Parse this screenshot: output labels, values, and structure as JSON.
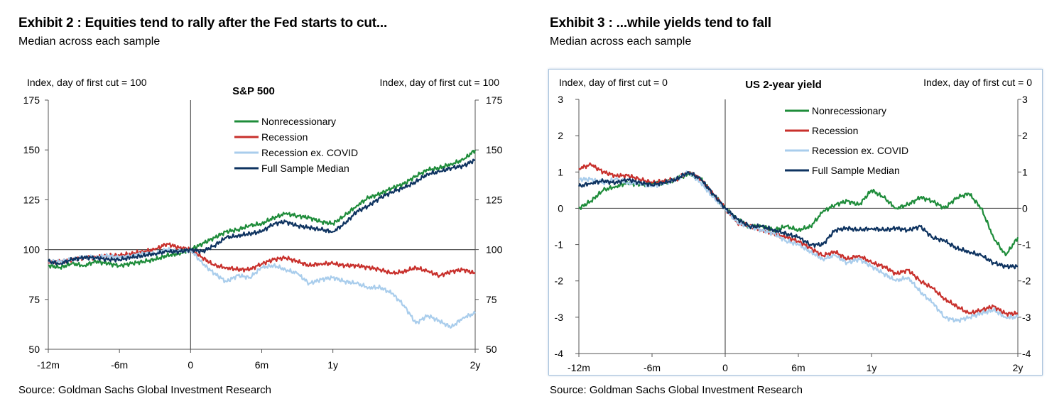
{
  "exhibit2": {
    "title": "Exhibit 2 : Equities tend to rally after the Fed starts to cut...",
    "subtitle": "Median across each sample",
    "source": "Source: Goldman Sachs Global Investment Research"
  },
  "exhibit3": {
    "title": "Exhibit 3 : ...while yields tend to fall",
    "subtitle": "Median across each sample",
    "source": "Source: Goldman Sachs Global Investment Research"
  },
  "colors": {
    "nonrecessionary": "#1e8c3a",
    "recession": "#c8302c",
    "recession_ex_covid": "#a9cdec",
    "full_sample_median": "#0e3360"
  },
  "chart_data": [
    {
      "type": "line",
      "title": "S&P 500",
      "ylabel_left": "Index, day of first cut = 100",
      "ylabel_right": "Index, day of first cut = 100",
      "ylim": [
        50,
        175
      ],
      "yticks": [
        50,
        75,
        100,
        125,
        150,
        175
      ],
      "xlim": [
        -12,
        24
      ],
      "xticks": [
        {
          "value": -12,
          "label": "-12m"
        },
        {
          "value": -6,
          "label": "-6m"
        },
        {
          "value": 0,
          "label": "0"
        },
        {
          "value": 6,
          "label": "6m"
        },
        {
          "value": 12,
          "label": "1y"
        },
        {
          "value": 24,
          "label": "2y"
        }
      ],
      "legend_position": "top-center",
      "reference_lines": {
        "x": 0,
        "y": 100
      },
      "series": [
        {
          "name": "Nonrecessionary",
          "color_key": "nonrecessionary",
          "x": [
            -12,
            -11,
            -10,
            -9,
            -8,
            -7,
            -6,
            -5,
            -4,
            -3,
            -2,
            -1,
            0,
            1,
            2,
            3,
            4,
            5,
            6,
            7,
            8,
            9,
            10,
            11,
            12,
            13,
            14,
            15,
            16,
            17,
            18,
            19,
            20,
            21,
            22,
            23,
            24
          ],
          "y": [
            92,
            91,
            93,
            92,
            94,
            93,
            92,
            93,
            94,
            95,
            97,
            98,
            100,
            103,
            106,
            109,
            110,
            112,
            113,
            116,
            118,
            117,
            116,
            114,
            113,
            117,
            122,
            126,
            128,
            131,
            133,
            137,
            140,
            141,
            143,
            145,
            150
          ]
        },
        {
          "name": "Recession",
          "color_key": "recession",
          "x": [
            -12,
            -11,
            -10,
            -9,
            -8,
            -7,
            -6,
            -5,
            -4,
            -3,
            -2,
            -1,
            0,
            1,
            2,
            3,
            4,
            5,
            6,
            7,
            8,
            9,
            10,
            11,
            12,
            13,
            14,
            15,
            16,
            17,
            18,
            19,
            20,
            21,
            22,
            23,
            24
          ],
          "y": [
            94,
            94,
            95,
            96,
            96,
            97,
            97,
            98,
            99,
            100,
            103,
            101,
            100,
            96,
            92,
            91,
            90,
            90,
            93,
            95,
            96,
            94,
            92,
            93,
            93,
            92,
            92,
            91,
            90,
            88,
            89,
            91,
            89,
            87,
            89,
            90,
            88
          ]
        },
        {
          "name": "Recession ex. COVID",
          "color_key": "recession_ex_covid",
          "x": [
            -12,
            -11,
            -10,
            -9,
            -8,
            -7,
            -6,
            -5,
            -4,
            -3,
            -2,
            -1,
            0,
            1,
            2,
            3,
            4,
            5,
            6,
            7,
            8,
            9,
            10,
            11,
            12,
            13,
            14,
            15,
            16,
            17,
            18,
            19,
            20,
            21,
            22,
            23,
            24
          ],
          "y": [
            94,
            94,
            95,
            96,
            96,
            97,
            96,
            97,
            98,
            98,
            100,
            99,
            100,
            93,
            88,
            84,
            87,
            86,
            91,
            92,
            90,
            88,
            83,
            85,
            86,
            84,
            83,
            81,
            81,
            78,
            72,
            63,
            67,
            64,
            61,
            66,
            68
          ]
        },
        {
          "name": "Full Sample Median",
          "color_key": "full_sample_median",
          "x": [
            -12,
            -11,
            -10,
            -9,
            -8,
            -7,
            -6,
            -5,
            -4,
            -3,
            -2,
            -1,
            0,
            1,
            2,
            3,
            4,
            5,
            6,
            7,
            8,
            9,
            10,
            11,
            12,
            13,
            14,
            15,
            16,
            17,
            18,
            19,
            20,
            21,
            22,
            23,
            24
          ],
          "y": [
            94,
            93,
            95,
            96,
            96,
            95,
            95,
            96,
            97,
            98,
            99,
            99,
            100,
            99,
            102,
            106,
            107,
            108,
            109,
            113,
            114,
            112,
            111,
            110,
            109,
            113,
            119,
            122,
            126,
            129,
            131,
            134,
            138,
            139,
            141,
            142,
            145
          ]
        }
      ]
    },
    {
      "type": "line",
      "title": "US 2-year yield",
      "ylabel_left": "Index, day of first cut = 0",
      "ylabel_right": "Index, day of first cut = 0",
      "ylim": [
        -4,
        3
      ],
      "yticks": [
        -4,
        -3,
        -2,
        -1,
        0,
        1,
        2,
        3
      ],
      "xlim": [
        -12,
        24
      ],
      "xticks": [
        {
          "value": -12,
          "label": "-12m"
        },
        {
          "value": -6,
          "label": "-6m"
        },
        {
          "value": 0,
          "label": "0"
        },
        {
          "value": 6,
          "label": "6m"
        },
        {
          "value": 12,
          "label": "1y"
        },
        {
          "value": 24,
          "label": "2y"
        }
      ],
      "legend_position": "top-right",
      "reference_lines": {
        "x": 0,
        "y": 0
      },
      "series": [
        {
          "name": "Nonrecessionary",
          "color_key": "nonrecessionary",
          "x": [
            -12,
            -11,
            -10,
            -9,
            -8,
            -7,
            -6,
            -5,
            -4,
            -3,
            -2,
            -1,
            0,
            1,
            2,
            3,
            4,
            5,
            6,
            7,
            8,
            9,
            10,
            11,
            12,
            13,
            14,
            15,
            16,
            17,
            18,
            19,
            20,
            21,
            22,
            23,
            24
          ],
          "y": [
            0.0,
            0.2,
            0.5,
            0.6,
            0.7,
            0.65,
            0.7,
            0.7,
            0.8,
            0.95,
            0.8,
            0.4,
            0.0,
            -0.3,
            -0.5,
            -0.5,
            -0.6,
            -0.5,
            -0.6,
            -0.5,
            -0.1,
            0.1,
            0.2,
            0.1,
            0.5,
            0.3,
            0.0,
            0.1,
            0.3,
            0.2,
            0.0,
            0.3,
            0.4,
            0.0,
            -0.8,
            -1.3,
            -0.8
          ]
        },
        {
          "name": "Recession",
          "color_key": "recession",
          "x": [
            -12,
            -11,
            -10,
            -9,
            -8,
            -7,
            -6,
            -5,
            -4,
            -3,
            -2,
            -1,
            0,
            1,
            2,
            3,
            4,
            5,
            6,
            7,
            8,
            9,
            10,
            11,
            12,
            13,
            14,
            15,
            16,
            17,
            18,
            19,
            20,
            21,
            22,
            23,
            24
          ],
          "y": [
            1.1,
            1.2,
            1.0,
            0.9,
            0.9,
            0.8,
            0.7,
            0.75,
            0.8,
            1.0,
            0.8,
            0.4,
            0.0,
            -0.4,
            -0.5,
            -0.6,
            -0.7,
            -0.8,
            -0.9,
            -1.1,
            -1.3,
            -1.2,
            -1.4,
            -1.3,
            -1.5,
            -1.6,
            -1.8,
            -1.7,
            -2.0,
            -2.2,
            -2.5,
            -2.7,
            -2.9,
            -2.8,
            -2.7,
            -2.9,
            -2.9
          ]
        },
        {
          "name": "Recession ex. COVID",
          "color_key": "recession_ex_covid",
          "x": [
            -12,
            -11,
            -10,
            -9,
            -8,
            -7,
            -6,
            -5,
            -4,
            -3,
            -2,
            -1,
            0,
            1,
            2,
            3,
            4,
            5,
            6,
            7,
            8,
            9,
            10,
            11,
            12,
            13,
            14,
            15,
            16,
            17,
            18,
            19,
            20,
            21,
            22,
            23,
            24
          ],
          "y": [
            0.8,
            0.8,
            0.7,
            0.8,
            0.7,
            0.7,
            0.6,
            0.7,
            0.8,
            1.0,
            0.7,
            0.3,
            0.0,
            -0.4,
            -0.5,
            -0.6,
            -0.7,
            -0.9,
            -1.0,
            -1.2,
            -1.4,
            -1.3,
            -1.5,
            -1.4,
            -1.6,
            -1.8,
            -2.0,
            -1.9,
            -2.3,
            -2.6,
            -3.0,
            -3.1,
            -3.0,
            -2.9,
            -2.8,
            -3.0,
            -3.0
          ]
        },
        {
          "name": "Full Sample Median",
          "color_key": "full_sample_median",
          "x": [
            -12,
            -11,
            -10,
            -9,
            -8,
            -7,
            -6,
            -5,
            -4,
            -3,
            -2,
            -1,
            0,
            1,
            2,
            3,
            4,
            5,
            6,
            7,
            8,
            9,
            10,
            11,
            12,
            13,
            14,
            15,
            16,
            17,
            18,
            19,
            20,
            21,
            22,
            23,
            24
          ],
          "y": [
            0.6,
            0.7,
            0.75,
            0.7,
            0.8,
            0.7,
            0.65,
            0.7,
            0.8,
            1.0,
            0.8,
            0.4,
            0.0,
            -0.3,
            -0.5,
            -0.5,
            -0.6,
            -0.7,
            -0.8,
            -1.0,
            -1.0,
            -0.6,
            -0.55,
            -0.6,
            -0.55,
            -0.6,
            -0.55,
            -0.6,
            -0.5,
            -0.8,
            -0.9,
            -1.1,
            -1.2,
            -1.3,
            -1.5,
            -1.6,
            -1.6
          ]
        }
      ]
    }
  ]
}
